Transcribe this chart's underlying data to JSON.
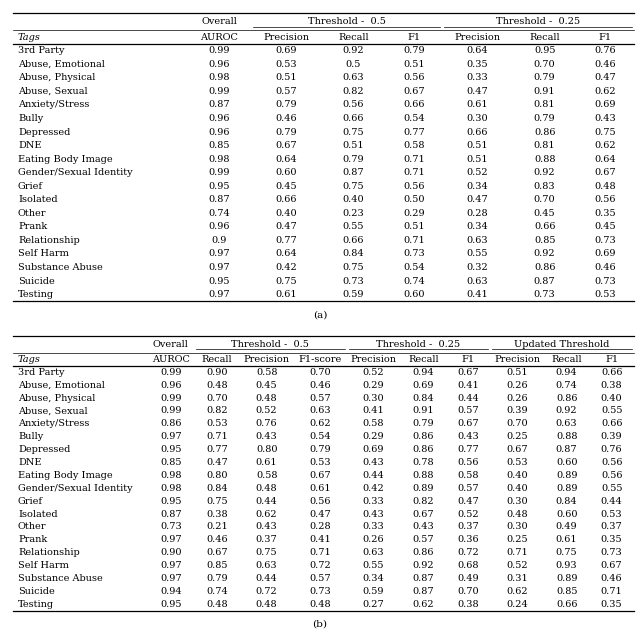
{
  "table_a": {
    "title": "(a)",
    "group_headers": [
      "Overall",
      "Threshold -  0.5",
      "Threshold -  0.25"
    ],
    "group_spans": [
      1,
      3,
      3
    ],
    "col_headers": [
      "Tags",
      "AUROC",
      "Precision",
      "Recall",
      "F1",
      "Precision",
      "Recall",
      "F1"
    ],
    "rows": [
      [
        "3rd Party",
        "0.99",
        "0.69",
        "0.92",
        "0.79",
        "0.64",
        "0.95",
        "0.76"
      ],
      [
        "Abuse, Emotional",
        "0.96",
        "0.53",
        "0.5",
        "0.51",
        "0.35",
        "0.70",
        "0.46"
      ],
      [
        "Abuse, Physical",
        "0.98",
        "0.51",
        "0.63",
        "0.56",
        "0.33",
        "0.79",
        "0.47"
      ],
      [
        "Abuse, Sexual",
        "0.99",
        "0.57",
        "0.82",
        "0.67",
        "0.47",
        "0.91",
        "0.62"
      ],
      [
        "Anxiety/Stress",
        "0.87",
        "0.79",
        "0.56",
        "0.66",
        "0.61",
        "0.81",
        "0.69"
      ],
      [
        "Bully",
        "0.96",
        "0.46",
        "0.66",
        "0.54",
        "0.30",
        "0.79",
        "0.43"
      ],
      [
        "Depressed",
        "0.96",
        "0.79",
        "0.75",
        "0.77",
        "0.66",
        "0.86",
        "0.75"
      ],
      [
        "DNE",
        "0.85",
        "0.67",
        "0.51",
        "0.58",
        "0.51",
        "0.81",
        "0.62"
      ],
      [
        "Eating Body Image",
        "0.98",
        "0.64",
        "0.79",
        "0.71",
        "0.51",
        "0.88",
        "0.64"
      ],
      [
        "Gender/Sexual Identity",
        "0.99",
        "0.60",
        "0.87",
        "0.71",
        "0.52",
        "0.92",
        "0.67"
      ],
      [
        "Grief",
        "0.95",
        "0.45",
        "0.75",
        "0.56",
        "0.34",
        "0.83",
        "0.48"
      ],
      [
        "Isolated",
        "0.87",
        "0.66",
        "0.40",
        "0.50",
        "0.47",
        "0.70",
        "0.56"
      ],
      [
        "Other",
        "0.74",
        "0.40",
        "0.23",
        "0.29",
        "0.28",
        "0.45",
        "0.35"
      ],
      [
        "Prank",
        "0.96",
        "0.47",
        "0.55",
        "0.51",
        "0.34",
        "0.66",
        "0.45"
      ],
      [
        "Relationship",
        "0.9",
        "0.77",
        "0.66",
        "0.71",
        "0.63",
        "0.85",
        "0.73"
      ],
      [
        "Self Harm",
        "0.97",
        "0.64",
        "0.84",
        "0.73",
        "0.55",
        "0.92",
        "0.69"
      ],
      [
        "Substance Abuse",
        "0.97",
        "0.42",
        "0.75",
        "0.54",
        "0.32",
        "0.86",
        "0.46"
      ],
      [
        "Suicide",
        "0.95",
        "0.75",
        "0.73",
        "0.74",
        "0.63",
        "0.87",
        "0.73"
      ],
      [
        "Testing",
        "0.97",
        "0.61",
        "0.59",
        "0.60",
        "0.41",
        "0.73",
        "0.53"
      ]
    ]
  },
  "table_b": {
    "title": "(b)",
    "group_headers": [
      "Overall",
      "Threshold -  0.5",
      "Threshold -  0.25",
      "Updated Threshold"
    ],
    "group_spans": [
      1,
      3,
      3,
      3
    ],
    "col_headers": [
      "Tags",
      "AUROC",
      "Recall",
      "Precision",
      "F1-score",
      "Precision",
      "Recall",
      "F1",
      "Precision",
      "Recall",
      "F1"
    ],
    "rows": [
      [
        "3rd Party",
        "0.99",
        "0.90",
        "0.58",
        "0.70",
        "0.52",
        "0.94",
        "0.67",
        "0.51",
        "0.94",
        "0.66"
      ],
      [
        "Abuse, Emotional",
        "0.96",
        "0.48",
        "0.45",
        "0.46",
        "0.29",
        "0.69",
        "0.41",
        "0.26",
        "0.74",
        "0.38"
      ],
      [
        "Abuse, Physical",
        "0.99",
        "0.70",
        "0.48",
        "0.57",
        "0.30",
        "0.84",
        "0.44",
        "0.26",
        "0.86",
        "0.40"
      ],
      [
        "Abuse, Sexual",
        "0.99",
        "0.82",
        "0.52",
        "0.63",
        "0.41",
        "0.91",
        "0.57",
        "0.39",
        "0.92",
        "0.55"
      ],
      [
        "Anxiety/Stress",
        "0.86",
        "0.53",
        "0.76",
        "0.62",
        "0.58",
        "0.79",
        "0.67",
        "0.70",
        "0.63",
        "0.66"
      ],
      [
        "Bully",
        "0.97",
        "0.71",
        "0.43",
        "0.54",
        "0.29",
        "0.86",
        "0.43",
        "0.25",
        "0.88",
        "0.39"
      ],
      [
        "Depressed",
        "0.95",
        "0.77",
        "0.80",
        "0.79",
        "0.69",
        "0.86",
        "0.77",
        "0.67",
        "0.87",
        "0.76"
      ],
      [
        "DNE",
        "0.85",
        "0.47",
        "0.61",
        "0.53",
        "0.43",
        "0.78",
        "0.56",
        "0.53",
        "0.60",
        "0.56"
      ],
      [
        "Eating Body Image",
        "0.98",
        "0.80",
        "0.58",
        "0.67",
        "0.44",
        "0.88",
        "0.58",
        "0.40",
        "0.89",
        "0.56"
      ],
      [
        "Gender/Sexual Identity",
        "0.98",
        "0.84",
        "0.48",
        "0.61",
        "0.42",
        "0.89",
        "0.57",
        "0.40",
        "0.89",
        "0.55"
      ],
      [
        "Grief",
        "0.95",
        "0.75",
        "0.44",
        "0.56",
        "0.33",
        "0.82",
        "0.47",
        "0.30",
        "0.84",
        "0.44"
      ],
      [
        "Isolated",
        "0.87",
        "0.38",
        "0.62",
        "0.47",
        "0.43",
        "0.67",
        "0.52",
        "0.48",
        "0.60",
        "0.53"
      ],
      [
        "Other",
        "0.73",
        "0.21",
        "0.43",
        "0.28",
        "0.33",
        "0.43",
        "0.37",
        "0.30",
        "0.49",
        "0.37"
      ],
      [
        "Prank",
        "0.97",
        "0.46",
        "0.37",
        "0.41",
        "0.26",
        "0.57",
        "0.36",
        "0.25",
        "0.61",
        "0.35"
      ],
      [
        "Relationship",
        "0.90",
        "0.67",
        "0.75",
        "0.71",
        "0.63",
        "0.86",
        "0.72",
        "0.71",
        "0.75",
        "0.73"
      ],
      [
        "Self Harm",
        "0.97",
        "0.85",
        "0.63",
        "0.72",
        "0.55",
        "0.92",
        "0.68",
        "0.52",
        "0.93",
        "0.67"
      ],
      [
        "Substance Abuse",
        "0.97",
        "0.79",
        "0.44",
        "0.57",
        "0.34",
        "0.87",
        "0.49",
        "0.31",
        "0.89",
        "0.46"
      ],
      [
        "Suicide",
        "0.94",
        "0.74",
        "0.72",
        "0.73",
        "0.59",
        "0.87",
        "0.70",
        "0.62",
        "0.85",
        "0.71"
      ],
      [
        "Testing",
        "0.95",
        "0.48",
        "0.48",
        "0.48",
        "0.27",
        "0.62",
        "0.38",
        "0.24",
        "0.66",
        "0.35"
      ]
    ]
  },
  "font_family": "serif",
  "font_size": 7.0,
  "bg_color": "white"
}
